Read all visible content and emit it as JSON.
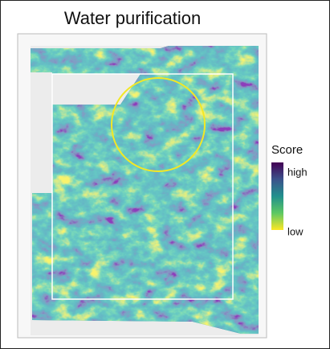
{
  "title": "Water purification",
  "legend": {
    "title": "Score",
    "high": "high",
    "low": "low"
  }
}
